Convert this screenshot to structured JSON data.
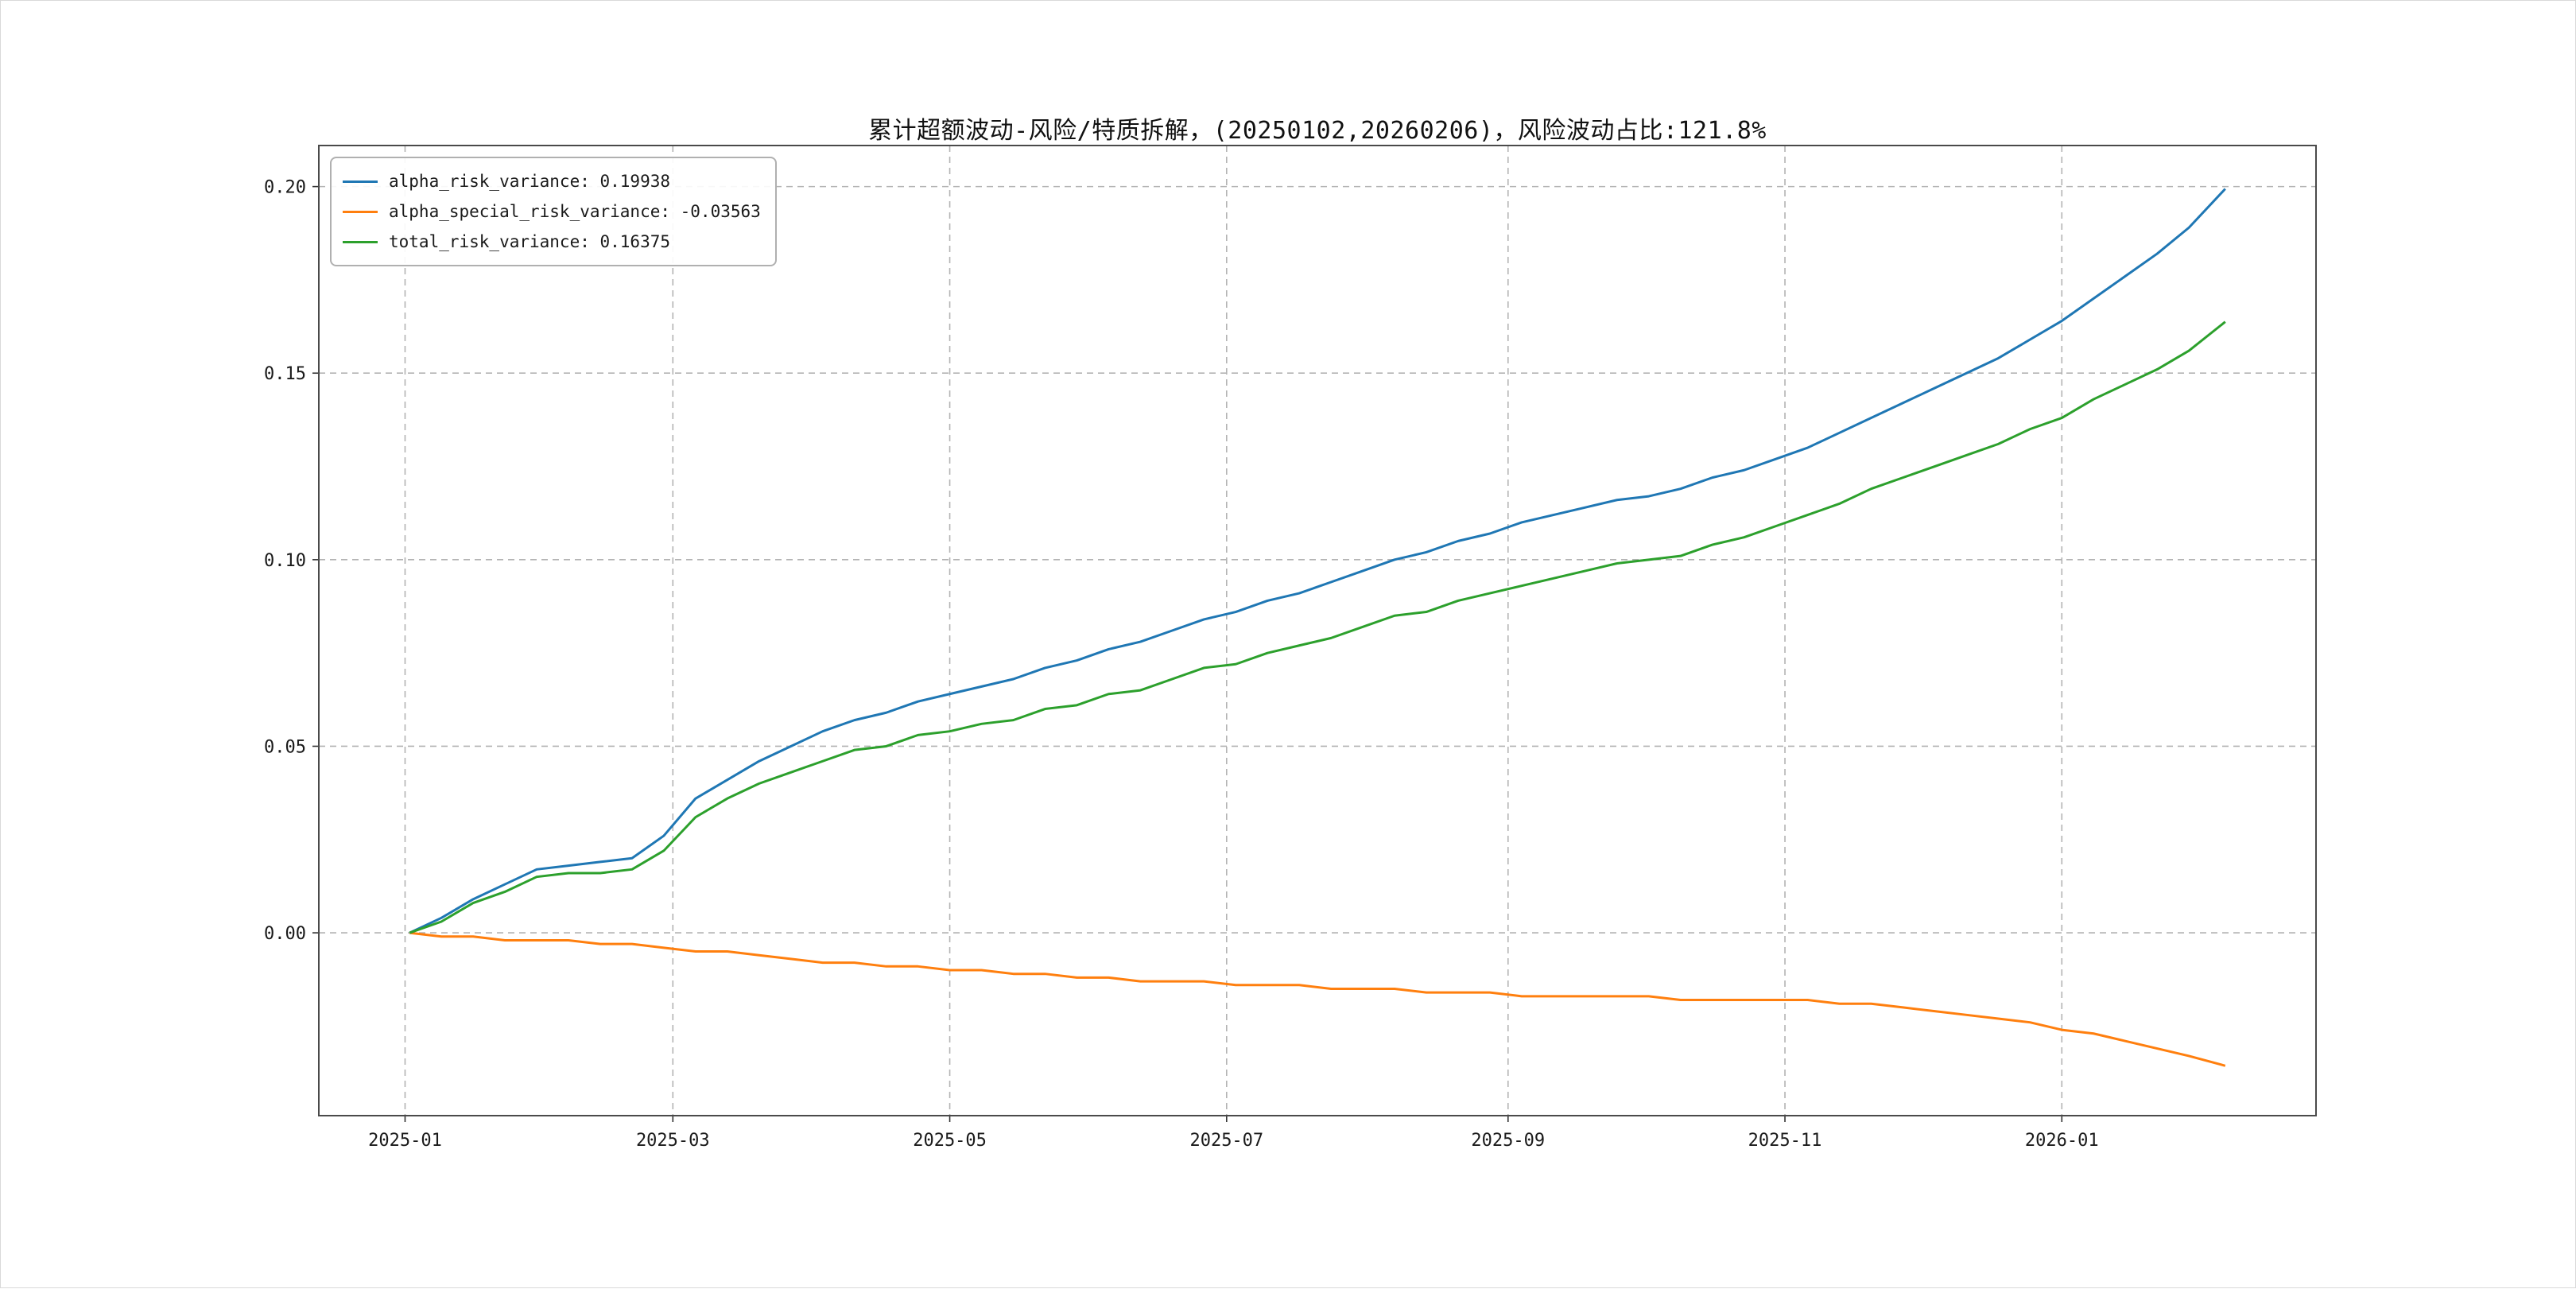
{
  "chart_data": {
    "type": "line",
    "title": "累计超额波动-风险/特质拆解，(20250102,20260206)，风险波动占比:121.8%",
    "date_range": [
      "20250102",
      "20260206"
    ],
    "risk_volatility_ratio": "121.8%",
    "grid": true,
    "legend_position": "upper-left",
    "xlim": [
      "2024-12-13",
      "2026-02-26"
    ],
    "ylim": [
      -0.049,
      0.211
    ],
    "xticks": [
      {
        "date": "2025-01-01",
        "label": "2025-01"
      },
      {
        "date": "2025-03-01",
        "label": "2025-03"
      },
      {
        "date": "2025-05-01",
        "label": "2025-05"
      },
      {
        "date": "2025-07-01",
        "label": "2025-07"
      },
      {
        "date": "2025-09-01",
        "label": "2025-09"
      },
      {
        "date": "2025-11-01",
        "label": "2025-11"
      },
      {
        "date": "2026-01-01",
        "label": "2026-01"
      }
    ],
    "yticks": [
      {
        "value": 0.0,
        "label": "0.00"
      },
      {
        "value": 0.05,
        "label": "0.05"
      },
      {
        "value": 0.1,
        "label": "0.10"
      },
      {
        "value": 0.15,
        "label": "0.15"
      },
      {
        "value": 0.2,
        "label": "0.20"
      }
    ],
    "dates": [
      "2025-01-02",
      "2025-01-09",
      "2025-01-16",
      "2025-01-23",
      "2025-01-30",
      "2025-02-06",
      "2025-02-13",
      "2025-02-20",
      "2025-02-27",
      "2025-03-06",
      "2025-03-13",
      "2025-03-20",
      "2025-03-27",
      "2025-04-03",
      "2025-04-10",
      "2025-04-17",
      "2025-04-24",
      "2025-05-01",
      "2025-05-08",
      "2025-05-15",
      "2025-05-22",
      "2025-05-29",
      "2025-06-05",
      "2025-06-12",
      "2025-06-19",
      "2025-06-26",
      "2025-07-03",
      "2025-07-10",
      "2025-07-17",
      "2025-07-24",
      "2025-07-31",
      "2025-08-07",
      "2025-08-14",
      "2025-08-21",
      "2025-08-28",
      "2025-09-04",
      "2025-09-11",
      "2025-09-18",
      "2025-09-25",
      "2025-10-02",
      "2025-10-09",
      "2025-10-16",
      "2025-10-23",
      "2025-10-30",
      "2025-11-06",
      "2025-11-13",
      "2025-11-20",
      "2025-11-27",
      "2025-12-04",
      "2025-12-11",
      "2025-12-18",
      "2025-12-25",
      "2026-01-01",
      "2026-01-08",
      "2026-01-15",
      "2026-01-22",
      "2026-01-29",
      "2026-02-06"
    ],
    "series": [
      {
        "name": "alpha_risk_variance",
        "final_value": 0.19938,
        "legend_label": "alpha_risk_variance: 0.19938",
        "color": "#1f77b4",
        "values": [
          0.0,
          0.004,
          0.009,
          0.013,
          0.017,
          0.018,
          0.019,
          0.02,
          0.026,
          0.036,
          0.041,
          0.046,
          0.05,
          0.054,
          0.057,
          0.059,
          0.062,
          0.064,
          0.066,
          0.068,
          0.071,
          0.073,
          0.076,
          0.078,
          0.081,
          0.084,
          0.086,
          0.089,
          0.091,
          0.094,
          0.097,
          0.1,
          0.102,
          0.105,
          0.107,
          0.11,
          0.112,
          0.114,
          0.116,
          0.117,
          0.119,
          0.122,
          0.124,
          0.127,
          0.13,
          0.134,
          0.138,
          0.142,
          0.146,
          0.15,
          0.154,
          0.159,
          0.164,
          0.17,
          0.176,
          0.182,
          0.189,
          0.19938
        ]
      },
      {
        "name": "alpha_special_risk_variance",
        "final_value": -0.03563,
        "legend_label": "alpha_special_risk_variance: -0.03563",
        "color": "#ff7f0e",
        "values": [
          0.0,
          -0.001,
          -0.001,
          -0.002,
          -0.002,
          -0.002,
          -0.003,
          -0.003,
          -0.004,
          -0.005,
          -0.005,
          -0.006,
          -0.007,
          -0.008,
          -0.008,
          -0.009,
          -0.009,
          -0.01,
          -0.01,
          -0.011,
          -0.011,
          -0.012,
          -0.012,
          -0.013,
          -0.013,
          -0.013,
          -0.014,
          -0.014,
          -0.014,
          -0.015,
          -0.015,
          -0.015,
          -0.016,
          -0.016,
          -0.016,
          -0.017,
          -0.017,
          -0.017,
          -0.017,
          -0.017,
          -0.018,
          -0.018,
          -0.018,
          -0.018,
          -0.018,
          -0.019,
          -0.019,
          -0.02,
          -0.021,
          -0.022,
          -0.023,
          -0.024,
          -0.026,
          -0.027,
          -0.029,
          -0.031,
          -0.033,
          -0.03563
        ]
      },
      {
        "name": "total_risk_variance",
        "final_value": 0.16375,
        "legend_label": "total_risk_variance: 0.16375",
        "color": "#2ca02c",
        "values": [
          0.0,
          0.003,
          0.008,
          0.011,
          0.015,
          0.016,
          0.016,
          0.017,
          0.022,
          0.031,
          0.036,
          0.04,
          0.043,
          0.046,
          0.049,
          0.05,
          0.053,
          0.054,
          0.056,
          0.057,
          0.06,
          0.061,
          0.064,
          0.065,
          0.068,
          0.071,
          0.072,
          0.075,
          0.077,
          0.079,
          0.082,
          0.085,
          0.086,
          0.089,
          0.091,
          0.093,
          0.095,
          0.097,
          0.099,
          0.1,
          0.101,
          0.104,
          0.106,
          0.109,
          0.112,
          0.115,
          0.119,
          0.122,
          0.125,
          0.128,
          0.131,
          0.135,
          0.138,
          0.143,
          0.147,
          0.151,
          0.156,
          0.16375
        ]
      }
    ]
  }
}
